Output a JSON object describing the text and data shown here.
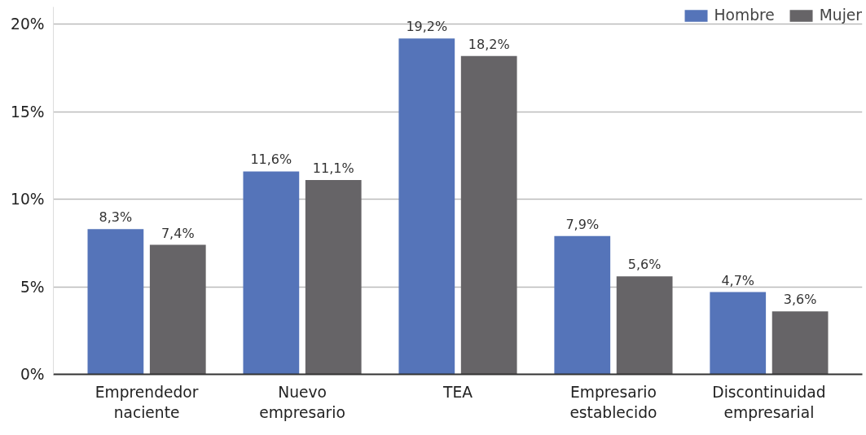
{
  "chart_data": {
    "type": "bar",
    "categories": [
      "Emprendedor\nnaciente",
      "Nuevo\nempresario",
      "TEA",
      "Empresario\nestablecido",
      "Discontinuidad\nempresarial"
    ],
    "series": [
      {
        "name": "Hombre",
        "color": "#5574b9",
        "values": [
          8.3,
          11.6,
          19.2,
          7.9,
          4.7
        ],
        "value_labels": [
          "8,3%",
          "11,6%",
          "19,2%",
          "7,9%",
          "4,7%"
        ]
      },
      {
        "name": "Mujer",
        "color": "#666467",
        "values": [
          7.4,
          11.1,
          18.2,
          5.6,
          3.6
        ],
        "value_labels": [
          "7,4%",
          "11,1%",
          "18,2%",
          "5,6%",
          "3,6%"
        ]
      }
    ],
    "ylim": [
      0,
      21
    ],
    "yticks": [
      {
        "value": 0,
        "label": "0%"
      },
      {
        "value": 5,
        "label": "5%"
      },
      {
        "value": 10,
        "label": "10%"
      },
      {
        "value": 15,
        "label": "15%"
      },
      {
        "value": 20,
        "label": "20%"
      }
    ],
    "grid": "y",
    "legend": "top right"
  }
}
